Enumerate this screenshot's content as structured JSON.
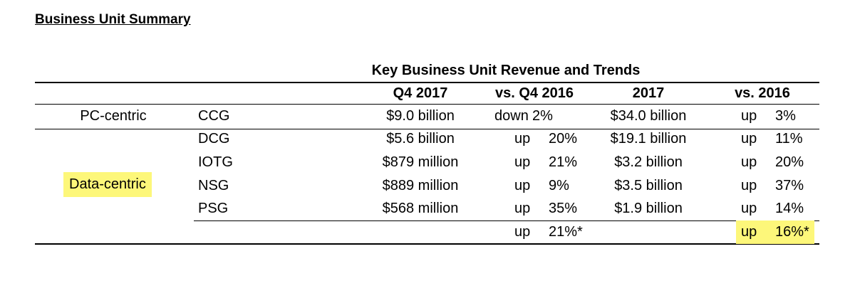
{
  "title": "Business Unit Summary",
  "table": {
    "caption": "Key Business Unit Revenue and Trends",
    "headers": [
      "Q4 2017",
      "vs. Q4 2016",
      "2017",
      "vs. 2016"
    ],
    "pc_segment": "PC-centric",
    "data_segment": "Data-centric",
    "rows": [
      {
        "unit": "CCG",
        "q4": "$9.0 billion",
        "q4_dir": "down",
        "q4_pct": "2%",
        "fy": "$34.0 billion",
        "fy_dir": "up",
        "fy_pct": "3%"
      },
      {
        "unit": "DCG",
        "q4": "$5.6 billion",
        "q4_dir": "up",
        "q4_pct": "20%",
        "fy": "$19.1 billion",
        "fy_dir": "up",
        "fy_pct": "11%"
      },
      {
        "unit": "IOTG",
        "q4": "$879 million",
        "q4_dir": "up",
        "q4_pct": "21%",
        "fy": "$3.2 billion",
        "fy_dir": "up",
        "fy_pct": "20%"
      },
      {
        "unit": "NSG",
        "q4": "$889 million",
        "q4_dir": "up",
        "q4_pct": "9%",
        "fy": "$3.5 billion",
        "fy_dir": "up",
        "fy_pct": "37%"
      },
      {
        "unit": "PSG",
        "q4": "$568 million",
        "q4_dir": "up",
        "q4_pct": "35%",
        "fy": "$1.9 billion",
        "fy_dir": "up",
        "fy_pct": "14%"
      }
    ],
    "total": {
      "q4_dir": "up",
      "q4_pct": "21%*",
      "fy_dir": "up",
      "fy_pct": "16%*"
    }
  },
  "colors": {
    "highlight": "#fdf77a"
  }
}
